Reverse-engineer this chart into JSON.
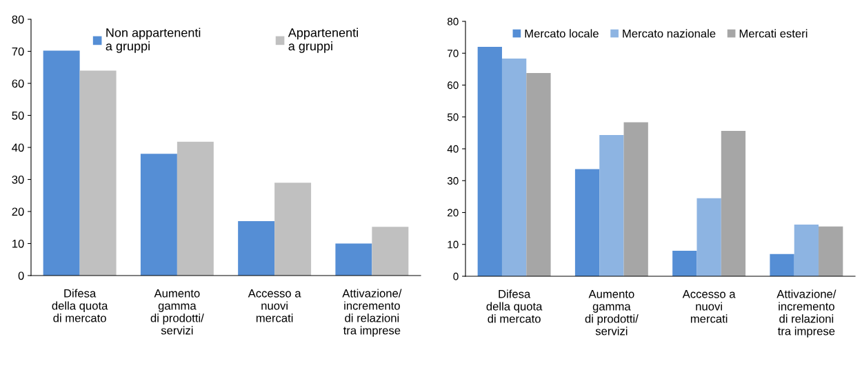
{
  "chart_data": [
    {
      "type": "bar",
      "categories": [
        "Difesa\ndella quota\ndi mercato",
        "Aumento\ngamma\ndi prodotti/\nservizi",
        "Accesso a\nnuovi\nmercati",
        "Attivazione/\nincremento\ndi relazioni\ntra imprese"
      ],
      "series": [
        {
          "name": "Non appartenenti\na gruppi",
          "color": "#558ed5",
          "values": [
            70.2,
            38,
            17,
            10
          ]
        },
        {
          "name": "Appartenenti\na gruppi",
          "color": "#c0c0c0",
          "values": [
            64,
            41.8,
            29,
            15.2
          ]
        }
      ],
      "ylim": [
        0,
        80
      ],
      "yticks": [
        0,
        10,
        20,
        30,
        40,
        50,
        60,
        70,
        80
      ],
      "grid": false,
      "legend": "top"
    },
    {
      "type": "bar",
      "categories": [
        "Difesa\ndella quota\ndi mercato",
        "Aumento\ngamma\ndi prodotti/\nservizi",
        "Accesso a\nnuovi\nmercati",
        "Attivazione/\nincremento\ndi relazioni\ntra imprese"
      ],
      "series": [
        {
          "name": "Mercato locale",
          "color": "#558ed5",
          "values": [
            72,
            33.6,
            8,
            7
          ]
        },
        {
          "name": "Mercato nazionale",
          "color": "#8db4e2",
          "values": [
            68.3,
            44.3,
            24.5,
            16.2
          ]
        },
        {
          "name": "Mercati esteri",
          "color": "#a6a6a6",
          "values": [
            63.8,
            48.3,
            45.6,
            15.6
          ]
        }
      ],
      "ylim": [
        0,
        80
      ],
      "yticks": [
        0,
        10,
        20,
        30,
        40,
        50,
        60,
        70,
        80
      ],
      "grid": false,
      "legend": "top"
    }
  ]
}
